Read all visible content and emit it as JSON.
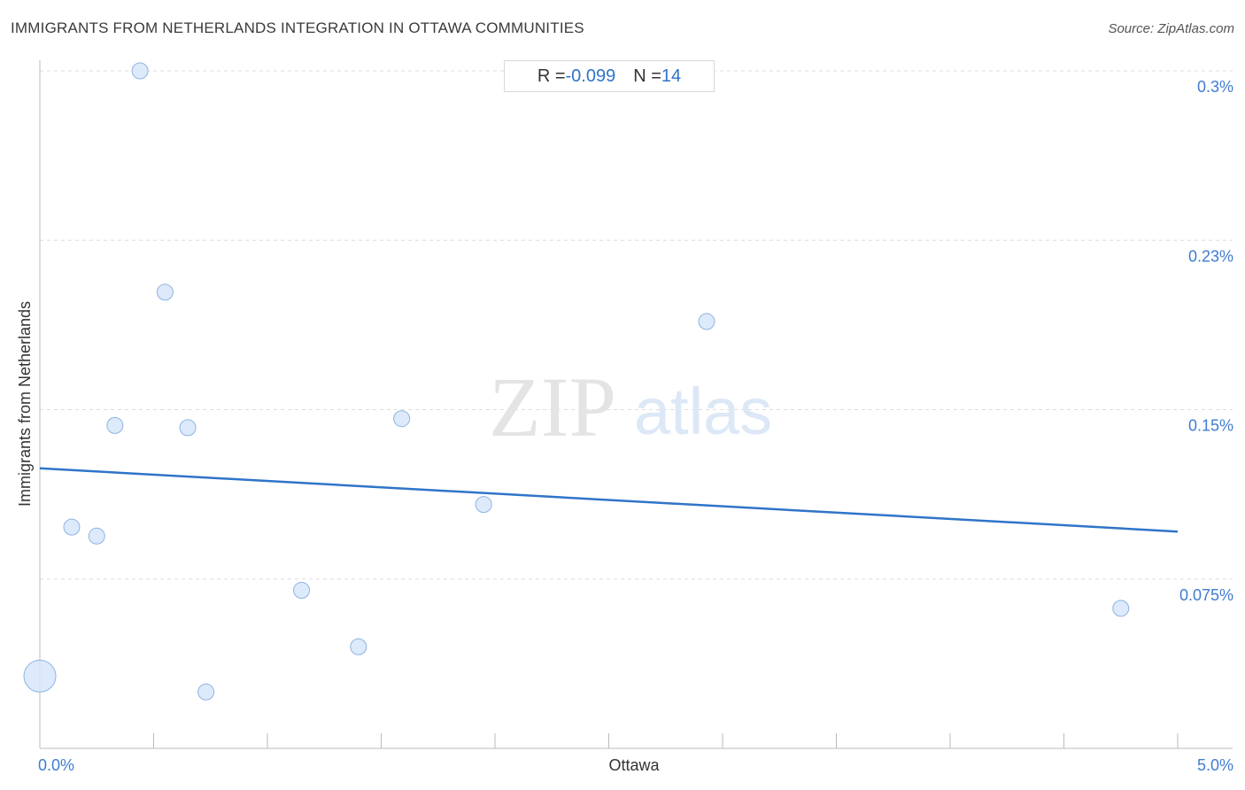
{
  "header": {
    "title": "IMMIGRANTS FROM NETHERLANDS INTEGRATION IN OTTAWA COMMUNITIES",
    "source": "Source: ZipAtlas.com"
  },
  "stats": {
    "r_label": "R = ",
    "r_value": "-0.099",
    "n_label": "N = ",
    "n_value": "14"
  },
  "watermark": {
    "zip": "ZIP",
    "atlas": "atlas"
  },
  "colors": {
    "point_fill": "#d6e6fa",
    "point_stroke": "#8fb3e0",
    "trend": "#2f74c9",
    "grid": "#dddddd",
    "tick_label": "#3f7cd2"
  },
  "chart_data": {
    "type": "scatter",
    "title": "IMMIGRANTS FROM NETHERLANDS INTEGRATION IN OTTAWA COMMUNITIES",
    "xlabel": "Ottawa",
    "ylabel": "Immigrants from Netherlands",
    "xlim": [
      0,
      5.0
    ],
    "ylim": [
      0,
      0.3
    ],
    "x_tick_labels": [
      {
        "value": 0,
        "label": "0.0%"
      },
      {
        "value": 5.0,
        "label": "5.0%"
      }
    ],
    "y_tick_labels": [
      {
        "value": 0.3,
        "label": "0.3%"
      },
      {
        "value": 0.225,
        "label": "0.23%"
      },
      {
        "value": 0.15,
        "label": "0.15%"
      },
      {
        "value": 0.075,
        "label": "0.075%"
      }
    ],
    "grid": true,
    "points": [
      {
        "x": 0.0,
        "y": 0.032,
        "size": "large"
      },
      {
        "x": 0.14,
        "y": 0.098,
        "size": "normal"
      },
      {
        "x": 0.25,
        "y": 0.094,
        "size": "normal"
      },
      {
        "x": 0.33,
        "y": 0.143,
        "size": "normal"
      },
      {
        "x": 0.44,
        "y": 0.3,
        "size": "normal"
      },
      {
        "x": 0.55,
        "y": 0.202,
        "size": "normal"
      },
      {
        "x": 0.65,
        "y": 0.142,
        "size": "normal"
      },
      {
        "x": 0.73,
        "y": 0.025,
        "size": "normal"
      },
      {
        "x": 1.15,
        "y": 0.07,
        "size": "normal"
      },
      {
        "x": 1.4,
        "y": 0.045,
        "size": "normal"
      },
      {
        "x": 1.59,
        "y": 0.146,
        "size": "normal"
      },
      {
        "x": 1.95,
        "y": 0.108,
        "size": "normal"
      },
      {
        "x": 2.93,
        "y": 0.189,
        "size": "normal"
      },
      {
        "x": 4.75,
        "y": 0.062,
        "size": "normal"
      }
    ],
    "trend_line": {
      "x": [
        0,
        5.0
      ],
      "y": [
        0.124,
        0.096
      ]
    }
  }
}
